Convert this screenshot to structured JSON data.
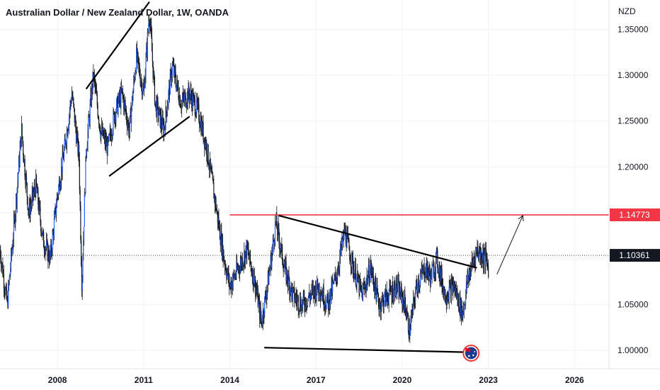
{
  "chart_data": {
    "type": "candlestick-line",
    "title": "Australian Dollar / New Zealand Dollar, 1W, OANDA",
    "currency": "NZD",
    "xlim": [
      2006.0,
      2027.2
    ],
    "ylim": [
      0.98,
      1.382
    ],
    "x_ticks": [
      2008,
      2011,
      2014,
      2017,
      2020,
      2023,
      2026
    ],
    "x_tick_labels": [
      "2008",
      "2011",
      "2014",
      "2017",
      "2020",
      "2023",
      "2026"
    ],
    "y_ticks": [
      1.0,
      1.05,
      1.1,
      1.15,
      1.2,
      1.25,
      1.3,
      1.35
    ],
    "y_tick_labels": [
      "1.00000",
      "1.05000",
      "1.10000",
      "1.15000",
      "1.20000",
      "1.25000",
      "1.30000",
      "1.35000"
    ],
    "price_path": [
      [
        2006.0,
        1.11
      ],
      [
        2006.25,
        1.05
      ],
      [
        2006.5,
        1.14
      ],
      [
        2006.75,
        1.24
      ],
      [
        2007.0,
        1.15
      ],
      [
        2007.25,
        1.18
      ],
      [
        2007.5,
        1.12
      ],
      [
        2007.75,
        1.1
      ],
      [
        2008.0,
        1.17
      ],
      [
        2008.25,
        1.22
      ],
      [
        2008.5,
        1.28
      ],
      [
        2008.75,
        1.21
      ],
      [
        2008.85,
        1.07
      ],
      [
        2009.0,
        1.22
      ],
      [
        2009.25,
        1.3
      ],
      [
        2009.5,
        1.24
      ],
      [
        2009.75,
        1.22
      ],
      [
        2010.0,
        1.26
      ],
      [
        2010.25,
        1.28
      ],
      [
        2010.5,
        1.24
      ],
      [
        2010.75,
        1.32
      ],
      [
        2011.0,
        1.28
      ],
      [
        2011.2,
        1.37
      ],
      [
        2011.4,
        1.27
      ],
      [
        2011.7,
        1.24
      ],
      [
        2012.0,
        1.31
      ],
      [
        2012.3,
        1.27
      ],
      [
        2012.6,
        1.28
      ],
      [
        2012.9,
        1.26
      ],
      [
        2013.2,
        1.22
      ],
      [
        2013.5,
        1.16
      ],
      [
        2013.8,
        1.1
      ],
      [
        2014.0,
        1.07
      ],
      [
        2014.3,
        1.09
      ],
      [
        2014.6,
        1.11
      ],
      [
        2014.9,
        1.07
      ],
      [
        2015.1,
        1.03
      ],
      [
        2015.4,
        1.09
      ],
      [
        2015.6,
        1.14
      ],
      [
        2015.9,
        1.09
      ],
      [
        2016.2,
        1.06
      ],
      [
        2016.5,
        1.05
      ],
      [
        2016.8,
        1.06
      ],
      [
        2017.1,
        1.07
      ],
      [
        2017.4,
        1.05
      ],
      [
        2017.7,
        1.08
      ],
      [
        2018.0,
        1.13
      ],
      [
        2018.3,
        1.09
      ],
      [
        2018.6,
        1.06
      ],
      [
        2018.9,
        1.09
      ],
      [
        2019.2,
        1.05
      ],
      [
        2019.5,
        1.06
      ],
      [
        2019.8,
        1.07
      ],
      [
        2020.1,
        1.05
      ],
      [
        2020.25,
        1.02
      ],
      [
        2020.5,
        1.07
      ],
      [
        2020.8,
        1.09
      ],
      [
        2021.0,
        1.08
      ],
      [
        2021.2,
        1.1
      ],
      [
        2021.5,
        1.06
      ],
      [
        2021.8,
        1.07
      ],
      [
        2022.1,
        1.04
      ],
      [
        2022.3,
        1.08
      ],
      [
        2022.6,
        1.11
      ],
      [
        2022.9,
        1.1
      ],
      [
        2023.0,
        1.09
      ]
    ],
    "horizontal_level": {
      "value": 1.14773,
      "label": "1.14773",
      "start_x": 2014.0,
      "color": "#f23645"
    },
    "current_price": {
      "value": 1.10361,
      "label": "1.10361"
    },
    "trendlines": [
      {
        "from": [
          2009.0,
          1.285
        ],
        "to": [
          2011.2,
          1.38
        ]
      },
      {
        "from": [
          2009.8,
          1.19
        ],
        "to": [
          2012.6,
          1.255
        ]
      },
      {
        "from": [
          2015.7,
          1.147
        ],
        "to": [
          2022.6,
          1.09
        ]
      },
      {
        "from": [
          2015.2,
          1.003
        ],
        "to": [
          2022.3,
          0.998
        ]
      }
    ],
    "projection": [
      [
        2023.3,
        1.083
      ],
      [
        2024.2,
        1.147
      ]
    ],
    "colors": {
      "candles": "#2962ff",
      "wicks": "#131722",
      "level": "#f23645",
      "lines": "#000000"
    },
    "flag_icon": "australia-flag-icon",
    "grid": true
  }
}
